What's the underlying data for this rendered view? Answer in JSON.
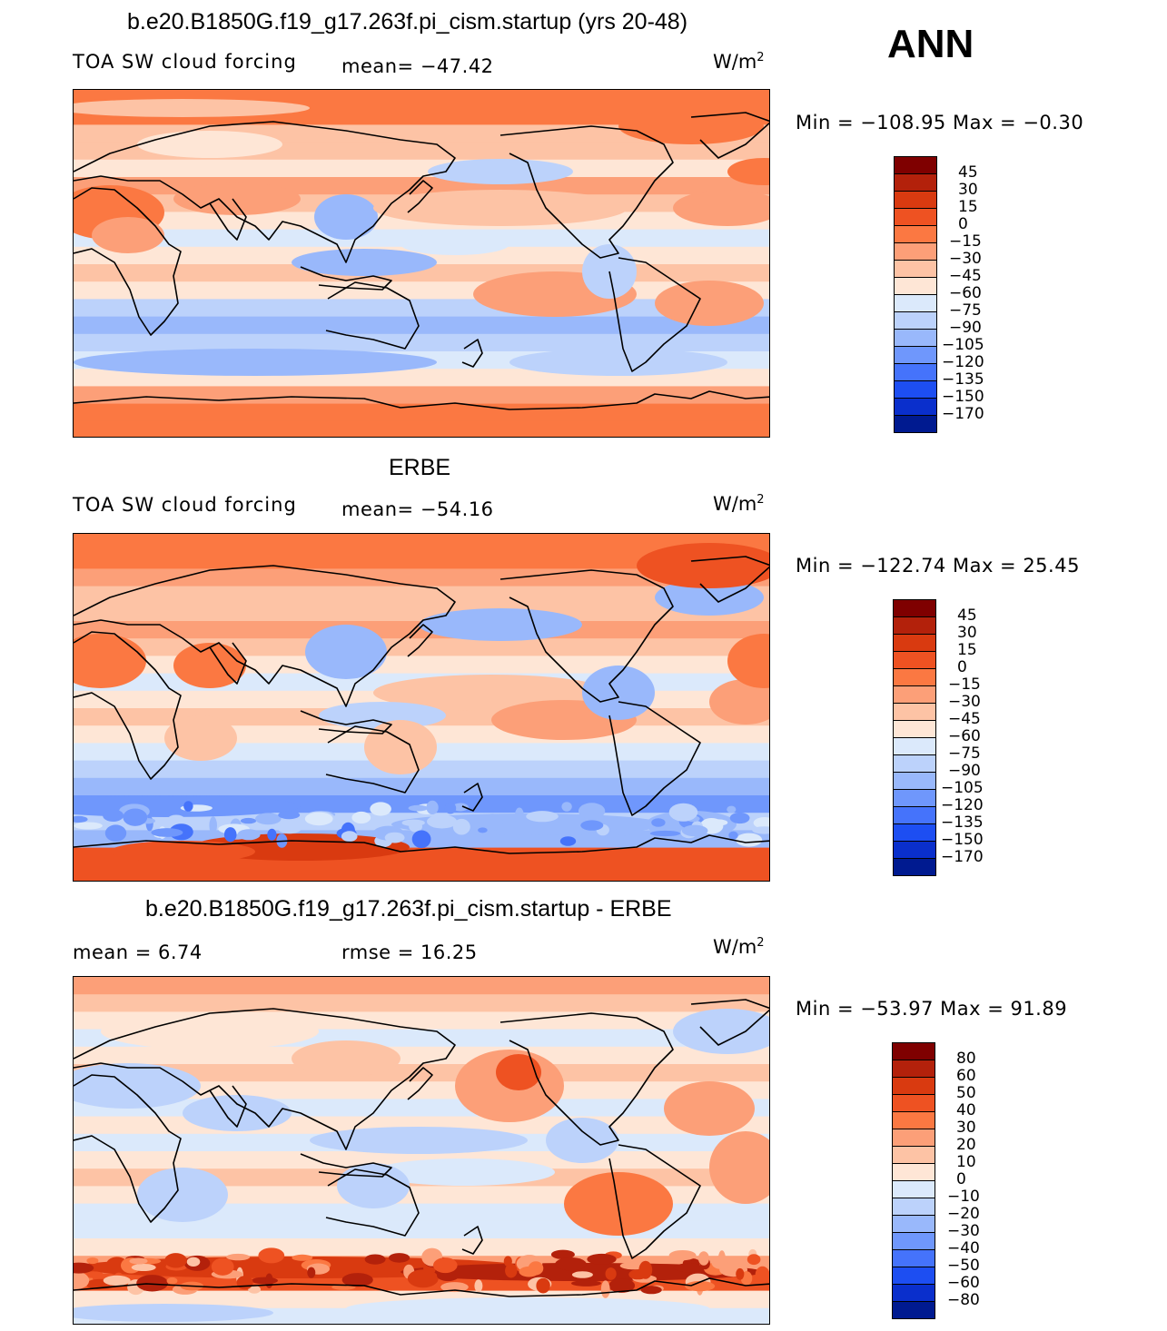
{
  "season": "ANN",
  "panels": [
    {
      "title": "b.e20.B1850G.f19_g17.263f.pi_cism.startup (yrs 20-48)",
      "left_label": "TOA SW cloud forcing",
      "stat_text": "mean=  −47.42",
      "units": "W/m",
      "units_exp": "2",
      "minmax": "Min  =  −108.95  Max  =    −0.30",
      "cbar_labels": [
        "45",
        "30",
        "15",
        "0",
        "−15",
        "−30",
        "−45",
        "−60",
        "−75",
        "−90",
        "−105",
        "−120",
        "−135",
        "−150",
        "−170"
      ]
    },
    {
      "title": "ERBE",
      "left_label": "TOA SW cloud forcing",
      "stat_text": "mean=  −54.16",
      "units": "W/m",
      "units_exp": "2",
      "minmax": "Min  =  −122.74  Max  =    25.45",
      "cbar_labels": [
        "45",
        "30",
        "15",
        "0",
        "−15",
        "−30",
        "−45",
        "−60",
        "−75",
        "−90",
        "−105",
        "−120",
        "−135",
        "−150",
        "−170"
      ]
    },
    {
      "title": "b.e20.B1850G.f19_g17.263f.pi_cism.startup - ERBE",
      "left_label": "mean  =     6.74",
      "stat_text": "rmse  =    16.25",
      "units": "W/m",
      "units_exp": "2",
      "minmax": "Min  =  −53.97  Max  =    91.89",
      "cbar_labels": [
        "80",
        "60",
        "50",
        "40",
        "30",
        "20",
        "10",
        "0",
        "−10",
        "−20",
        "−30",
        "−40",
        "−50",
        "−60",
        "−80"
      ]
    }
  ],
  "colors": {
    "palette": [
      "#7f0000",
      "#b3210b",
      "#d93a10",
      "#ee5222",
      "#fb7842",
      "#fc9f78",
      "#fdc3a5",
      "#fee6d6",
      "#dbe9fb",
      "#bcd2fb",
      "#99b8fb",
      "#6f97fc",
      "#4573fb",
      "#1d4ef2",
      "#0a2fcc",
      "#001a90"
    ]
  }
}
